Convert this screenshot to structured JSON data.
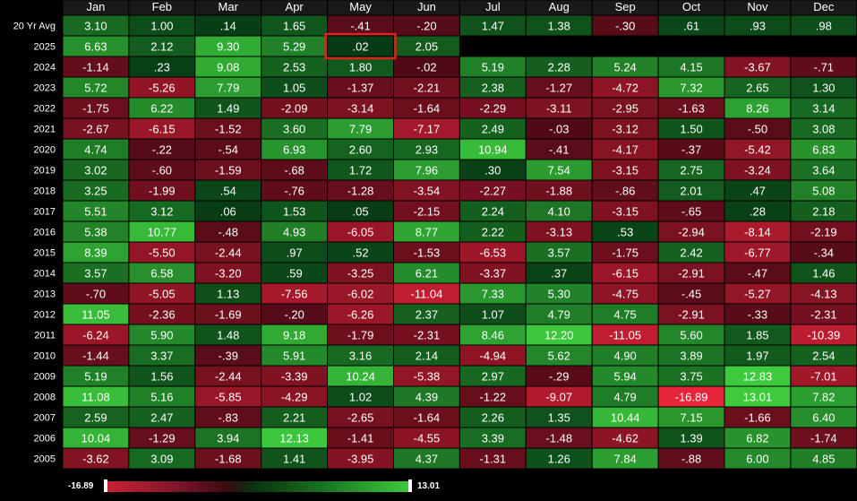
{
  "chart_data": {
    "type": "heatmap",
    "title": "",
    "columns": [
      "Jan",
      "Feb",
      "Mar",
      "Apr",
      "May",
      "Jun",
      "Jul",
      "Aug",
      "Sep",
      "Oct",
      "Nov",
      "Dec"
    ],
    "rows": [
      {
        "label": "20 Yr Avg",
        "values": [
          "3.10",
          "1.00",
          ".14",
          "1.65",
          "-.41",
          "-.20",
          "1.47",
          "1.38",
          "-.30",
          ".61",
          ".93",
          ".98"
        ]
      },
      {
        "label": "2025",
        "values": [
          "6.63",
          "2.12",
          "9.30",
          "5.29",
          ".02",
          "2.05",
          null,
          null,
          null,
          null,
          null,
          null
        ]
      },
      {
        "label": "2024",
        "values": [
          "-1.14",
          ".23",
          "9.08",
          "2.53",
          "1.80",
          "-.02",
          "5.19",
          "2.28",
          "5.24",
          "4.15",
          "-3.67",
          "-.71"
        ]
      },
      {
        "label": "2023",
        "values": [
          "5.72",
          "-5.26",
          "7.79",
          "1.05",
          "-1.37",
          "-2.21",
          "2.38",
          "-1.27",
          "-4.72",
          "7.32",
          "2.65",
          "1.30"
        ]
      },
      {
        "label": "2022",
        "values": [
          "-1.75",
          "6.22",
          "1.49",
          "-2.09",
          "-3.14",
          "-1.64",
          "-2.29",
          "-3.11",
          "-2.95",
          "-1.63",
          "8.26",
          "3.14"
        ]
      },
      {
        "label": "2021",
        "values": [
          "-2.67",
          "-6.15",
          "-1.52",
          "3.60",
          "7.79",
          "-7.17",
          "2.49",
          "-.03",
          "-3.12",
          "1.50",
          "-.50",
          "3.08"
        ]
      },
      {
        "label": "2020",
        "values": [
          "4.74",
          "-.22",
          "-.54",
          "6.93",
          "2.60",
          "2.93",
          "10.94",
          "-.41",
          "-4.17",
          "-.37",
          "-5.42",
          "6.83"
        ]
      },
      {
        "label": "2019",
        "values": [
          "3.02",
          "-.60",
          "-1.59",
          "-.68",
          "1.72",
          "7.96",
          ".30",
          "7.54",
          "-3.15",
          "2.75",
          "-3.24",
          "3.64"
        ]
      },
      {
        "label": "2018",
        "values": [
          "3.25",
          "-1.99",
          ".54",
          "-.76",
          "-1.28",
          "-3.54",
          "-2.27",
          "-1.88",
          "-.86",
          "2.01",
          ".47",
          "5.08"
        ]
      },
      {
        "label": "2017",
        "values": [
          "5.51",
          "3.12",
          ".06",
          "1.53",
          ".05",
          "-2.15",
          "2.24",
          "4.10",
          "-3.15",
          "-.65",
          ".28",
          "2.18"
        ]
      },
      {
        "label": "2016",
        "values": [
          "5.38",
          "10.77",
          "-.48",
          "4.93",
          "-6.05",
          "8.77",
          "2.22",
          "-3.13",
          ".53",
          "-2.94",
          "-8.14",
          "-2.19"
        ]
      },
      {
        "label": "2015",
        "values": [
          "8.39",
          "-5.50",
          "-2.44",
          ".97",
          ".52",
          "-1.53",
          "-6.53",
          "3.57",
          "-1.75",
          "2.42",
          "-6.77",
          "-.34"
        ]
      },
      {
        "label": "2014",
        "values": [
          "3.57",
          "6.58",
          "-3.20",
          ".59",
          "-3.25",
          "6.21",
          "-3.37",
          ".37",
          "-6.15",
          "-2.91",
          "-.47",
          "1.46"
        ]
      },
      {
        "label": "2013",
        "values": [
          "-.70",
          "-5.05",
          "1.13",
          "-7.56",
          "-6.02",
          "-11.04",
          "7.33",
          "5.30",
          "-4.75",
          "-.45",
          "-5.27",
          "-4.13"
        ]
      },
      {
        "label": "2012",
        "values": [
          "11.05",
          "-2.36",
          "-1.69",
          "-.20",
          "-6.26",
          "2.37",
          "1.07",
          "4.79",
          "4.75",
          "-2.91",
          "-.33",
          "-2.31"
        ]
      },
      {
        "label": "2011",
        "values": [
          "-6.24",
          "5.90",
          "1.48",
          "9.18",
          "-1.79",
          "-2.31",
          "8.46",
          "12.20",
          "-11.05",
          "5.60",
          "1.85",
          "-10.39"
        ]
      },
      {
        "label": "2010",
        "values": [
          "-1.44",
          "3.37",
          "-.39",
          "5.91",
          "3.16",
          "2.14",
          "-4.94",
          "5.62",
          "4.90",
          "3.89",
          "1.97",
          "2.54"
        ]
      },
      {
        "label": "2009",
        "values": [
          "5.19",
          "1.56",
          "-2.44",
          "-3.39",
          "10.24",
          "-5.38",
          "2.97",
          "-.29",
          "5.94",
          "3.75",
          "12.83",
          "-7.01"
        ]
      },
      {
        "label": "2008",
        "values": [
          "11.08",
          "5.16",
          "-5.85",
          "-4.29",
          "1.02",
          "4.39",
          "-1.22",
          "-9.07",
          "4.79",
          "-16.89",
          "13.01",
          "7.82"
        ]
      },
      {
        "label": "2007",
        "values": [
          "2.59",
          "2.47",
          "-.83",
          "2.21",
          "-2.65",
          "-1.64",
          "2.26",
          "1.35",
          "10.44",
          "7.15",
          "-1.66",
          "6.40"
        ]
      },
      {
        "label": "2006",
        "values": [
          "10.04",
          "-1.29",
          "3.94",
          "12.13",
          "-1.41",
          "-4.55",
          "3.39",
          "-1.48",
          "-4.62",
          "1.39",
          "6.82",
          "-1.74"
        ]
      },
      {
        "label": "2005",
        "values": [
          "-3.62",
          "3.09",
          "-1.68",
          "1.41",
          "-3.95",
          "4.37",
          "-1.31",
          "1.26",
          "7.84",
          "-.88",
          "6.00",
          "4.85"
        ]
      }
    ],
    "highlight": {
      "row": "2025",
      "column": "May",
      "color": "#d9231e"
    },
    "color_scale": {
      "min": -16.89,
      "max": 13.01,
      "min_label": "-16.89",
      "max_label": "13.01",
      "negative_color": "#cc2233",
      "positive_color": "#3dca3d"
    }
  }
}
